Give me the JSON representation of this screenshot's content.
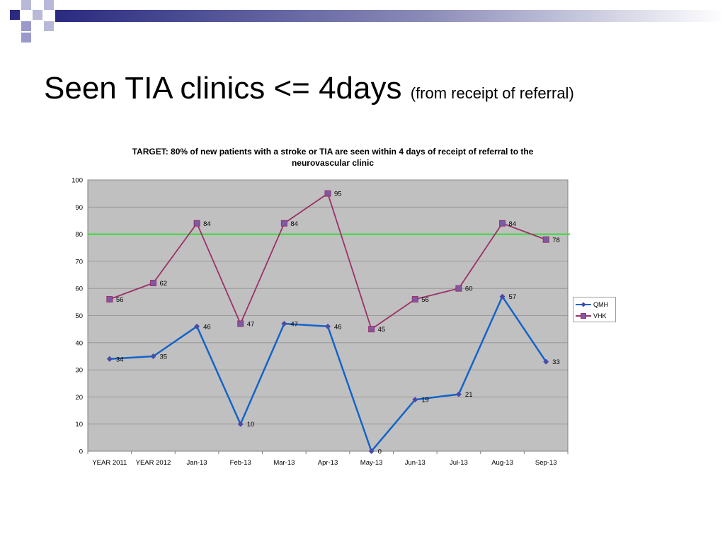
{
  "slide": {
    "title": "Seen TIA clinics <= 4days",
    "subtitle": "(from receipt of referral)"
  },
  "colors": {
    "header_squares": "#2a2a80",
    "header_light": "#9999cc",
    "plot_bg": "#c0c0c0",
    "grid": "#8f8f8f",
    "target_line": "#33dd33",
    "series_qmh": "#1464c8",
    "series_vhk": "#9b3168",
    "marker_qmh": "#4a4aa8",
    "marker_vhk": "#7a5aa6"
  },
  "chart_data": {
    "type": "line",
    "title": "TARGET:  80% of new patients with a stroke or TIA are seen within 4 days of receipt of referral to the neurovascular clinic",
    "xlabel": "",
    "ylabel": "",
    "ylim": [
      0,
      100
    ],
    "yticks": [
      0,
      10,
      20,
      30,
      40,
      50,
      60,
      70,
      80,
      90,
      100
    ],
    "grid": true,
    "legend": "right",
    "target": 80,
    "categories": [
      "YEAR 2011",
      "YEAR 2012",
      "Jan-13",
      "Feb-13",
      "Mar-13",
      "Apr-13",
      "May-13",
      "Jun-13",
      "Jul-13",
      "Aug-13",
      "Sep-13"
    ],
    "series": [
      {
        "name": "QMH",
        "marker": "diamond",
        "values": [
          34,
          35,
          46,
          10,
          47,
          46,
          0,
          19,
          21,
          57,
          33
        ]
      },
      {
        "name": "VHK",
        "marker": "square",
        "values": [
          56,
          62,
          84,
          47,
          84,
          95,
          45,
          56,
          60,
          84,
          78
        ]
      }
    ]
  }
}
